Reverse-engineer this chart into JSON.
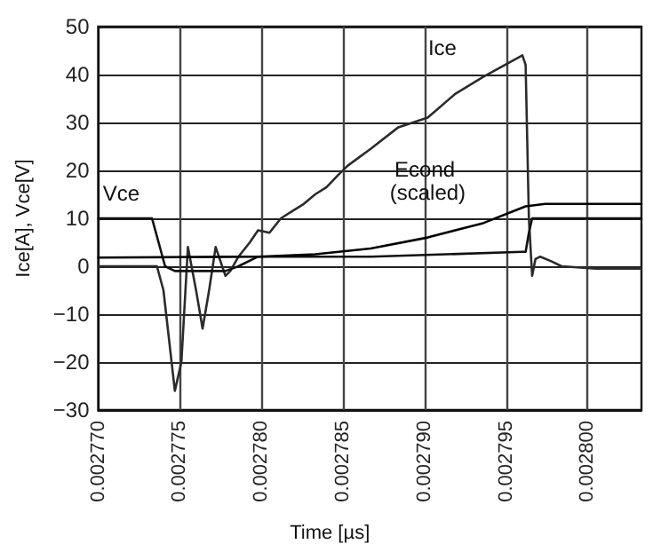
{
  "chart_data": {
    "type": "line",
    "xlabel": "Time [µs]",
    "ylabel": "Ice[A], Vce[V]",
    "xlim": [
      0.00277,
      0.0028033
    ],
    "xticks": [
      {
        "value": 0.00277,
        "label": "0.002770"
      },
      {
        "value": 0.002775,
        "label": "0.002775"
      },
      {
        "value": 0.00278,
        "label": "0.002780"
      },
      {
        "value": 0.002785,
        "label": "0.002785"
      },
      {
        "value": 0.00279,
        "label": "0.002790"
      },
      {
        "value": 0.002795,
        "label": "0.002795"
      },
      {
        "value": 0.0028,
        "label": "0.002800"
      }
    ],
    "ylim": [
      -30,
      50
    ],
    "yticks": [
      {
        "value": -30,
        "label": "−30"
      },
      {
        "value": -20,
        "label": "−20"
      },
      {
        "value": -10,
        "label": "−10"
      },
      0,
      10,
      20,
      30,
      40,
      50
    ],
    "grid": true,
    "marker": "none",
    "line_style": "solid",
    "series": [
      {
        "name": "Ice",
        "color": "#2b2b2b",
        "x": [
          0.00277,
          0.0027736,
          0.002774,
          0.0027747,
          0.0027751,
          0.0027755,
          0.002776,
          0.0027764,
          0.0027768,
          0.0027772,
          0.0027778,
          0.0027781,
          0.0027786,
          0.0027793,
          0.0027798,
          0.0027805,
          0.0027812,
          0.0027819,
          0.0027826,
          0.0027833,
          0.002784,
          0.0027847,
          0.0027853,
          0.0027867,
          0.0027884,
          0.0027902,
          0.0027919,
          0.0027936,
          0.002796,
          0.0027962,
          0.0027964,
          0.0027966,
          0.0027968,
          0.0027971,
          0.0027978,
          0.0027984,
          0.0028005,
          0.0028033
        ],
        "values": [
          0,
          0,
          -5,
          -26,
          -20,
          4,
          -5,
          -13,
          -5,
          4,
          -2,
          -1,
          2,
          5,
          7.5,
          7,
          10,
          11.5,
          13,
          15,
          16.5,
          19,
          21,
          24.5,
          29,
          31,
          36,
          39.5,
          44,
          42,
          10,
          -2,
          1.5,
          2,
          1,
          0,
          -0.5,
          -0.5
        ]
      },
      {
        "name": "Vce",
        "color": "#111111",
        "x": [
          0.00277,
          0.0027733,
          0.0027737,
          0.0027741,
          0.0027747,
          0.0027764,
          0.0027778,
          0.0027786,
          0.0027798,
          0.0027867,
          0.002796,
          0.0027962,
          0.0027964,
          0.0027966,
          0.0028033
        ],
        "values": [
          10,
          10,
          5,
          0,
          -1,
          -1,
          -1,
          0,
          2,
          2,
          3,
          3,
          7,
          10,
          10
        ]
      },
      {
        "name": "Econd (scaled)",
        "color": "#000000",
        "x": [
          0.00277,
          0.0027798,
          0.0027833,
          0.0027867,
          0.0027902,
          0.0027936,
          0.0027962,
          0.0027974,
          0.0028033
        ],
        "values": [
          1.8,
          2,
          2.5,
          3.7,
          6,
          9,
          12.5,
          13,
          13
        ]
      }
    ]
  }
}
